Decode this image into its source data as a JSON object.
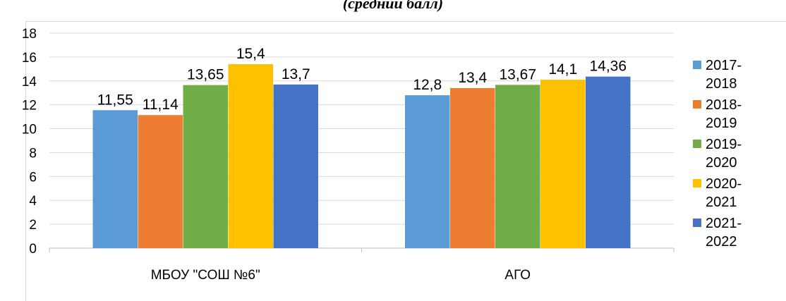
{
  "page": {
    "title": "(средний балл)"
  },
  "chart_data": {
    "type": "bar",
    "categories": [
      "МБОУ \"СОШ №6\"",
      "АГО"
    ],
    "series": [
      {
        "name": "2017-2018",
        "legend_label": "2017-\n2018",
        "color": "#5b9bd5",
        "values": [
          11.55,
          12.8
        ],
        "labels": [
          "11,55",
          "12,8"
        ]
      },
      {
        "name": "2018-2019",
        "legend_label": "2018-\n2019",
        "color": "#ed7d31",
        "values": [
          11.14,
          13.4
        ],
        "labels": [
          "11,14",
          "13,4"
        ]
      },
      {
        "name": "2019-2020",
        "legend_label": "2019-\n2020",
        "color": "#70ad47",
        "values": [
          13.65,
          13.67
        ],
        "labels": [
          "13,65",
          "13,67"
        ]
      },
      {
        "name": "2020-2021",
        "legend_label": "2020-\n2021",
        "color": "#ffc000",
        "values": [
          15.4,
          14.1
        ],
        "labels": [
          "15,4",
          "14,1"
        ]
      },
      {
        "name": "2021-2022",
        "legend_label": "2021-\n2022",
        "color": "#4472c4",
        "values": [
          13.7,
          14.36
        ],
        "labels": [
          "13,7",
          "14,36"
        ]
      }
    ],
    "yticks": [
      "0",
      "2",
      "4",
      "6",
      "8",
      "10",
      "12",
      "14",
      "16",
      "18"
    ],
    "ylim": [
      0,
      18
    ],
    "grid": true,
    "legend_position": "right",
    "title": "(средний балл)",
    "xlabel": "",
    "ylabel": ""
  }
}
